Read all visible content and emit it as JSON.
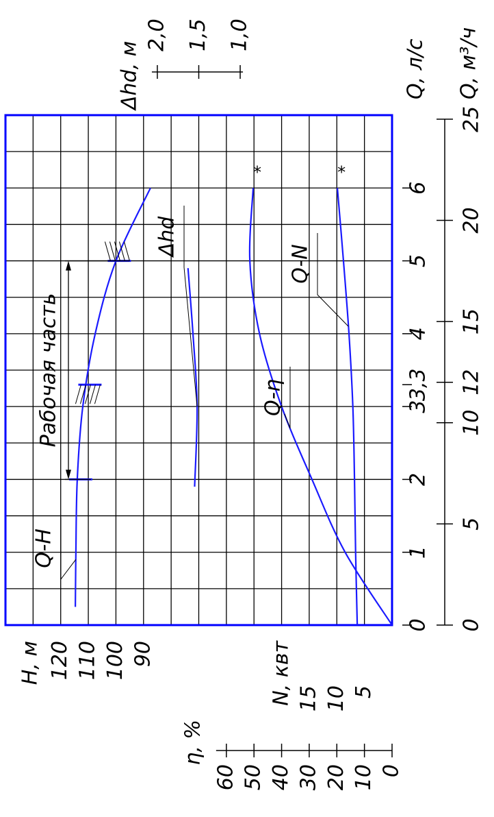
{
  "chart_data": {
    "type": "line",
    "xlabel": "Q, л/с",
    "xlim": [
      0,
      7
    ],
    "xticks": [
      0,
      1,
      2,
      3,
      {
        "value": 3.3,
        "label": "3,3"
      },
      4,
      5,
      6
    ],
    "x2label": "Q, м³/ч",
    "x2lim": [
      0,
      25.2
    ],
    "x2ticks": [
      0,
      5,
      10,
      12,
      15,
      20,
      25
    ],
    "ylabel": "H, м",
    "ylim": [
      0,
      140
    ],
    "yticks": [
      90,
      100,
      110,
      120
    ],
    "y2label": "N, квт",
    "y2lim": [
      0,
      70
    ],
    "y2ticks": [
      5,
      10,
      15
    ],
    "y3label": "η, %",
    "y3lim": [
      0,
      140
    ],
    "y3ticks": [
      0,
      10,
      20,
      30,
      40,
      50,
      60
    ],
    "y4label": "Δhd, м",
    "y4lim": [
      -0.833,
      3.833
    ],
    "y4ticks": [
      {
        "value": 2,
        "label": "2,0"
      },
      {
        "value": 1.5,
        "label": "1,5"
      },
      {
        "value": 1,
        "label": "1,0"
      }
    ],
    "grid": true,
    "frame_color": "#0000ff",
    "series": [
      {
        "name": "Q-H",
        "color": "#1a1aff",
        "axis": "y",
        "x": [
          0.25,
          1,
          2,
          3,
          4,
          5,
          6
        ],
        "values": [
          114.7,
          114.5,
          114,
          112,
          107.5,
          100,
          87.5
        ]
      },
      {
        "name": "Δhd",
        "color": "#1a1aff",
        "axis": "y4",
        "x": [
          1.9,
          3,
          4,
          4.9
        ],
        "values": [
          1.55,
          1.52,
          1.57,
          1.63
        ]
      },
      {
        "name": "Q-η",
        "color": "#1a1aff",
        "axis": "y3",
        "x": [
          0,
          1,
          2,
          3,
          4,
          5,
          6
        ],
        "values": [
          0,
          17,
          29,
          40,
          48,
          51.5,
          50.3
        ],
        "end_mark": "*"
      },
      {
        "name": "Q-N",
        "color": "#1a1aff",
        "axis": "y2",
        "x": [
          0,
          1,
          2,
          3,
          4,
          5,
          6
        ],
        "values": [
          6.3,
          6.6,
          6.8,
          7.1,
          7.8,
          8.8,
          9.9
        ],
        "end_mark": "*"
      }
    ],
    "working_range": {
      "label": "Рабочая часть",
      "x": [
        2,
        5
      ]
    },
    "hatch_marks": [
      2,
      3.3,
      5
    ]
  }
}
